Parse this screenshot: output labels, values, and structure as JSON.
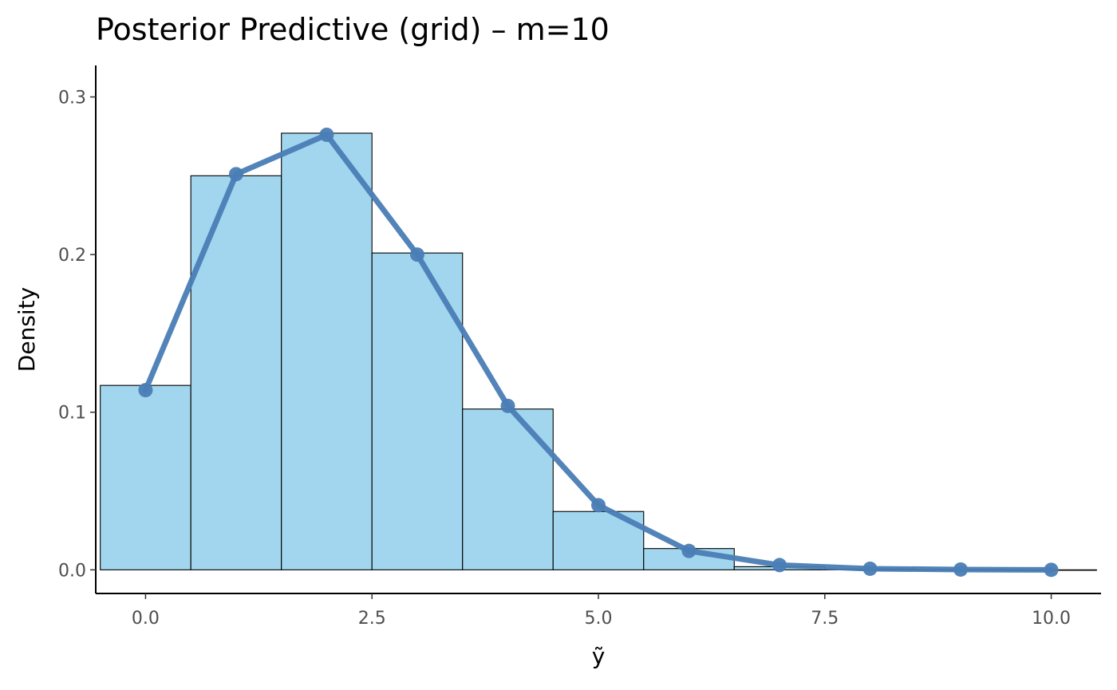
{
  "chart_data": {
    "type": "bar",
    "title": "Posterior Predictive (grid) – m=10",
    "xlabel": "ỹ",
    "ylabel": "Density",
    "xlim": [
      -0.55,
      10.55
    ],
    "ylim": [
      -0.015,
      0.32
    ],
    "x_ticks": [
      0,
      2.5,
      5,
      7.5,
      10
    ],
    "x_tick_labels": [
      "0.0",
      "2.5",
      "5.0",
      "7.5",
      "10.0"
    ],
    "y_ticks": [
      0,
      0.1,
      0.2,
      0.3
    ],
    "y_tick_labels": [
      "0.0",
      "0.1",
      "0.2",
      "0.3"
    ],
    "grid": false,
    "histogram": {
      "name": "",
      "fill": "#a1d6ee",
      "stroke": "#000000",
      "bin_width": 1,
      "x": [
        0,
        1,
        2,
        3,
        4,
        5,
        6,
        7,
        8,
        9,
        10
      ],
      "values": [
        0.117,
        0.25,
        0.277,
        0.201,
        0.102,
        0.037,
        0.0135,
        0.002,
        0.0005,
        0.0001,
        0.0
      ]
    },
    "series": [
      {
        "name": "",
        "type": "line",
        "color": "#4a7db5",
        "x": [
          0,
          1,
          2,
          3,
          4,
          5,
          6,
          7,
          8,
          9,
          10
        ],
        "values": [
          0.114,
          0.251,
          0.276,
          0.2,
          0.104,
          0.041,
          0.012,
          0.003,
          0.0007,
          0.0002,
          0.0
        ]
      }
    ]
  }
}
